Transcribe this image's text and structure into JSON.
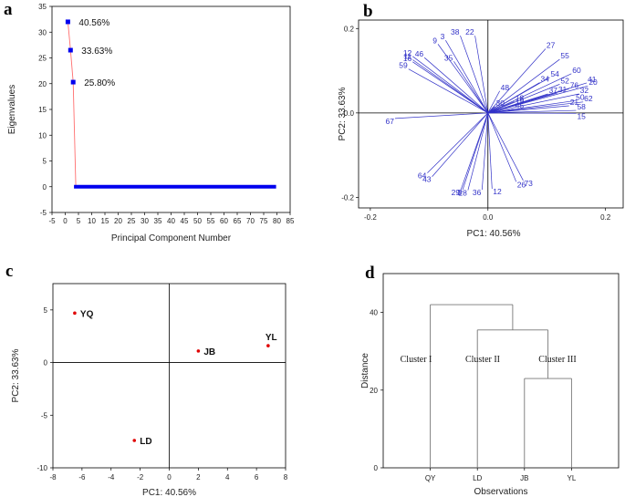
{
  "panels": [
    "a",
    "b",
    "c",
    "d"
  ],
  "chart_data": [
    {
      "id": "a",
      "type": "scatter",
      "title": "",
      "xlabel": "Principal Component Number",
      "ylabel": "Eigenvalues",
      "xlim": [
        -5,
        85
      ],
      "ylim": [
        -5,
        35
      ],
      "xticks": [
        -5,
        0,
        5,
        10,
        15,
        20,
        25,
        30,
        35,
        40,
        45,
        50,
        55,
        60,
        65,
        70,
        75,
        80,
        85
      ],
      "yticks": [
        -5,
        0,
        5,
        10,
        15,
        20,
        25,
        30,
        35
      ],
      "first_points": [
        {
          "x": 1,
          "y": 32.0,
          "label": "40.56%"
        },
        {
          "x": 2,
          "y": 26.5,
          "label": "33.63%"
        },
        {
          "x": 3,
          "y": 20.3,
          "label": "25.80%"
        }
      ],
      "tail": {
        "x_from": 4,
        "x_to": 79,
        "y": 0
      },
      "series_color": "#0000ee",
      "line_color": "#ff6f6f"
    },
    {
      "id": "b",
      "type": "scatter",
      "subtype": "loading-plot",
      "title": "",
      "xlabel": "PC1: 40.56%",
      "ylabel": "PC2: 33.63%",
      "xlim": [
        -0.22,
        0.23
      ],
      "ylim": [
        -0.225,
        0.22
      ],
      "xticks": [
        -0.2,
        0.0,
        0.2
      ],
      "xtick_labels": [
        "-0.2",
        "0.0",
        "0.2"
      ],
      "yticks": [
        -0.2,
        0.0,
        0.2
      ],
      "ytick_labels": [
        "-0.2",
        "0.0",
        "0.2"
      ],
      "vector_color": "#3232c8",
      "vectors": [
        {
          "label": "3",
          "x": -0.072,
          "y": 0.172
        },
        {
          "label": "9",
          "x": -0.085,
          "y": 0.163
        },
        {
          "label": "38",
          "x": -0.047,
          "y": 0.183
        },
        {
          "label": "22",
          "x": -0.022,
          "y": 0.183
        },
        {
          "label": "46",
          "x": -0.108,
          "y": 0.131
        },
        {
          "label": "12",
          "x": -0.128,
          "y": 0.134
        },
        {
          "label": "11",
          "x": -0.128,
          "y": 0.126
        },
        {
          "label": "16",
          "x": -0.128,
          "y": 0.121
        },
        {
          "label": "59",
          "x": -0.135,
          "y": 0.104
        },
        {
          "label": "35",
          "x": -0.058,
          "y": 0.122
        },
        {
          "label": "27",
          "x": 0.098,
          "y": 0.152
        },
        {
          "label": "55",
          "x": 0.122,
          "y": 0.127
        },
        {
          "label": "60",
          "x": 0.142,
          "y": 0.093
        },
        {
          "label": "41",
          "x": 0.168,
          "y": 0.071
        },
        {
          "label": "20",
          "x": 0.17,
          "y": 0.064
        },
        {
          "label": "54",
          "x": 0.105,
          "y": 0.084
        },
        {
          "label": "34",
          "x": 0.088,
          "y": 0.072
        },
        {
          "label": "52",
          "x": 0.122,
          "y": 0.068
        },
        {
          "label": "76",
          "x": 0.138,
          "y": 0.057
        },
        {
          "label": "32",
          "x": 0.155,
          "y": 0.045
        },
        {
          "label": "31",
          "x": 0.118,
          "y": 0.047
        },
        {
          "label": "37",
          "x": 0.102,
          "y": 0.045
        },
        {
          "label": "48",
          "x": 0.02,
          "y": 0.052
        },
        {
          "label": "18",
          "x": 0.045,
          "y": 0.027
        },
        {
          "label": "19",
          "x": 0.045,
          "y": 0.019
        },
        {
          "label": "50",
          "x": 0.148,
          "y": 0.029
        },
        {
          "label": "62",
          "x": 0.162,
          "y": 0.026
        },
        {
          "label": "21",
          "x": 0.138,
          "y": 0.017
        },
        {
          "label": "30",
          "x": 0.012,
          "y": 0.015
        },
        {
          "label": "45",
          "x": 0.045,
          "y": 0.009
        },
        {
          "label": "58",
          "x": 0.15,
          "y": 0.006
        },
        {
          "label": "15",
          "x": 0.15,
          "y": -0.001
        },
        {
          "label": "67",
          "x": -0.158,
          "y": -0.013
        },
        {
          "label": "64",
          "x": -0.103,
          "y": -0.142
        },
        {
          "label": "43",
          "x": -0.095,
          "y": -0.151
        },
        {
          "label": "29",
          "x": -0.046,
          "y": -0.182
        },
        {
          "label": "8",
          "x": -0.043,
          "y": -0.182
        },
        {
          "label": "28",
          "x": -0.034,
          "y": -0.183
        },
        {
          "label": "36",
          "x": -0.01,
          "y": -0.182
        },
        {
          "label": "12",
          "x": 0.007,
          "y": -0.18
        },
        {
          "label": "26",
          "x": 0.048,
          "y": -0.163
        },
        {
          "label": "73",
          "x": 0.06,
          "y": -0.16
        }
      ]
    },
    {
      "id": "c",
      "type": "scatter",
      "title": "",
      "xlabel": "PC1: 40.56%",
      "ylabel": "PC2: 33.63%",
      "xlim": [
        -8,
        8
      ],
      "ylim": [
        -10,
        7.5
      ],
      "xticks": [
        -8,
        -6,
        -4,
        -2,
        0,
        2,
        4,
        6,
        8
      ],
      "yticks": [
        -10,
        -5,
        0,
        5
      ],
      "point_color": "#e00000",
      "points": [
        {
          "label": "YQ",
          "x": -6.5,
          "y": 4.7
        },
        {
          "label": "JB",
          "x": 2.0,
          "y": 1.1
        },
        {
          "label": "YL",
          "x": 6.8,
          "y": 1.6
        },
        {
          "label": "LD",
          "x": -2.4,
          "y": -7.4
        }
      ]
    },
    {
      "id": "d",
      "type": "dendrogram",
      "title": "",
      "xlabel": "Observations",
      "ylabel": "Distance",
      "ylim": [
        0,
        50
      ],
      "yticks": [
        0,
        20,
        40
      ],
      "leaves": [
        "QY",
        "LD",
        "JB",
        "YL"
      ],
      "merges": [
        {
          "left": "JB",
          "right": "YL",
          "height": 23
        },
        {
          "left": "LD",
          "right": "JB+YL",
          "height": 35.5
        },
        {
          "left": "QY",
          "right": "LD+JB+YL",
          "height": 42
        }
      ],
      "cluster_labels": [
        "Cluster I",
        "Cluster II",
        "Cluster III"
      ]
    }
  ]
}
